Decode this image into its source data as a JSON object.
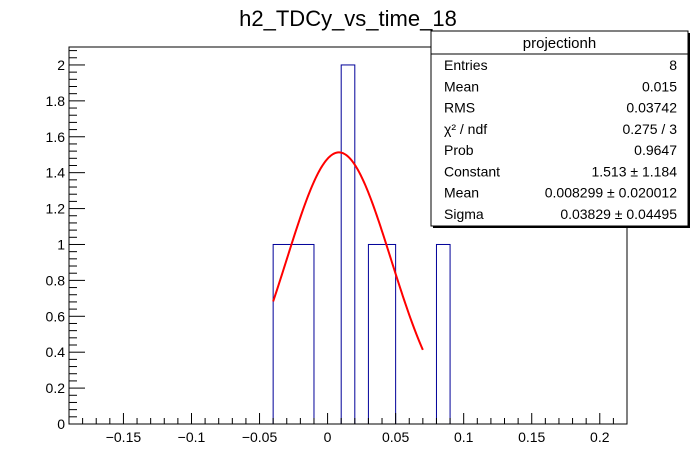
{
  "chart_data": {
    "type": "bar",
    "title": "h2_TDCy_vs_time_18",
    "xlabel": "",
    "ylabel": "",
    "xlim": [
      -0.19,
      0.22
    ],
    "ylim": [
      0,
      2.1
    ],
    "bin_width": 0.02,
    "bins": [
      {
        "low": -0.04,
        "high": -0.01,
        "value": 1
      },
      {
        "low": 0.01,
        "high": 0.02,
        "value": 2
      },
      {
        "low": 0.03,
        "high": 0.05,
        "value": 1
      },
      {
        "low": 0.08,
        "high": 0.09,
        "value": 1
      }
    ],
    "x_ticks": [
      -0.15,
      -0.1,
      -0.05,
      0,
      0.05,
      0.1,
      0.15,
      0.2
    ],
    "x_tick_labels": [
      "−0.15",
      "−0.1",
      "−0.05",
      "0",
      "0.05",
      "0.1",
      "0.15",
      "0.2"
    ],
    "y_ticks": [
      0,
      0.2,
      0.4,
      0.6,
      0.8,
      1,
      1.2,
      1.4,
      1.6,
      1.8,
      2
    ],
    "y_tick_labels": [
      "0",
      "0.2",
      "0.4",
      "0.6",
      "0.8",
      "1",
      "1.2",
      "1.4",
      "1.6",
      "1.8",
      "2"
    ],
    "fit": {
      "function": "gaus",
      "constant": 1.513,
      "mean": 0.008299,
      "sigma": 0.03829,
      "x_range": [
        -0.04,
        0.07
      ],
      "color": "#ff0000"
    },
    "histogram_color": "#000099",
    "stats_box": {
      "title": "projectionh",
      "rows": [
        {
          "label": "Entries",
          "value": "8"
        },
        {
          "label": "Mean",
          "value": "0.015"
        },
        {
          "label": "RMS",
          "value": "0.03742"
        },
        {
          "label": "χ² / ndf",
          "value": "0.275 / 3"
        },
        {
          "label": "Prob",
          "value": "0.9647"
        },
        {
          "label": "Constant",
          "value": "1.513 ± 1.184"
        },
        {
          "label": "Mean",
          "value": "0.008299 ± 0.020012"
        },
        {
          "label": "Sigma",
          "value": "0.03829 ± 0.04495"
        }
      ]
    },
    "grid": false,
    "legend": "top-right"
  }
}
